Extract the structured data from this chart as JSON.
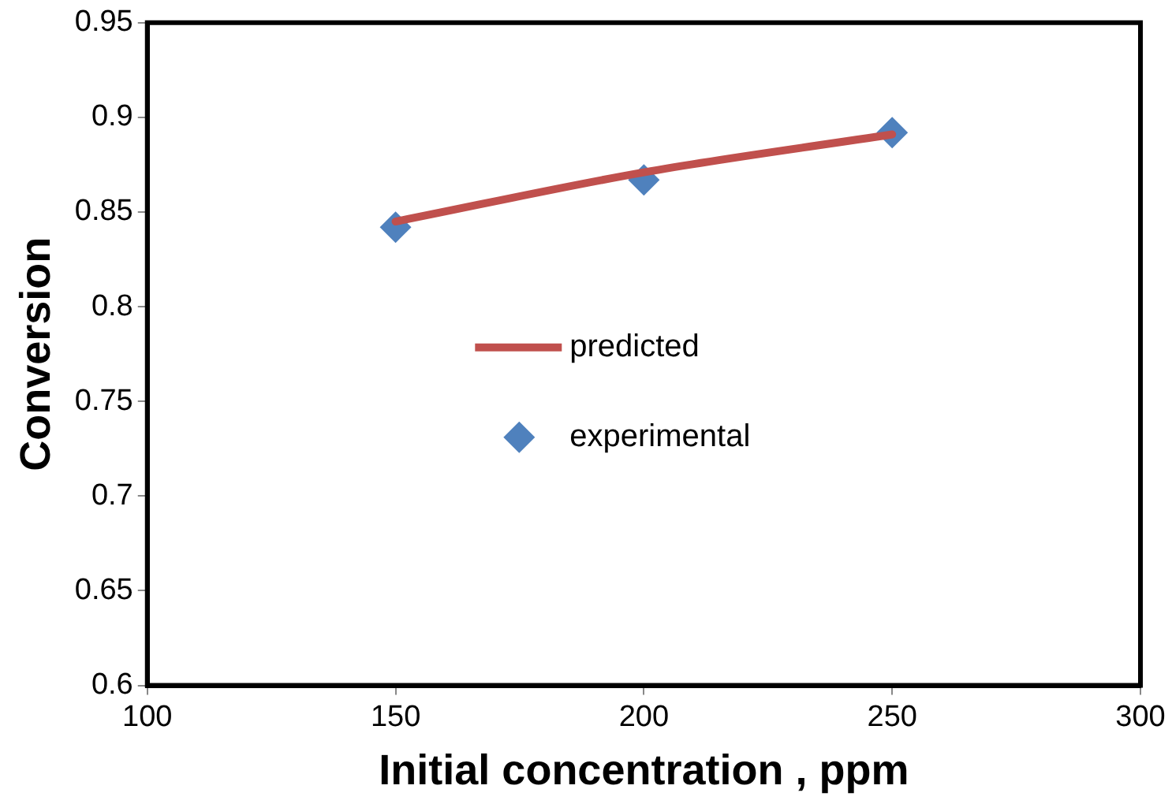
{
  "chart_data": {
    "type": "line",
    "xlabel": "Initial concentration , ppm",
    "ylabel": "Conversion",
    "xlim": [
      100,
      300
    ],
    "xticks": [
      100,
      150,
      200,
      250,
      300
    ],
    "ylim": [
      0.6,
      0.95
    ],
    "yticks": [
      0.6,
      0.65,
      0.7,
      0.75,
      0.8,
      0.85,
      0.9,
      0.95
    ],
    "grid": false,
    "legend": "center",
    "series": [
      {
        "name": "predicted",
        "type": "line",
        "color": "#c0504d",
        "x": [
          150,
          200,
          250
        ],
        "values": [
          0.845,
          0.871,
          0.891
        ],
        "marker": "none"
      },
      {
        "name": "experimental",
        "type": "scatter",
        "color": "#4f81bd",
        "x": [
          150,
          200,
          250
        ],
        "values": [
          0.842,
          0.867,
          0.892
        ],
        "marker": "diamond"
      }
    ]
  }
}
